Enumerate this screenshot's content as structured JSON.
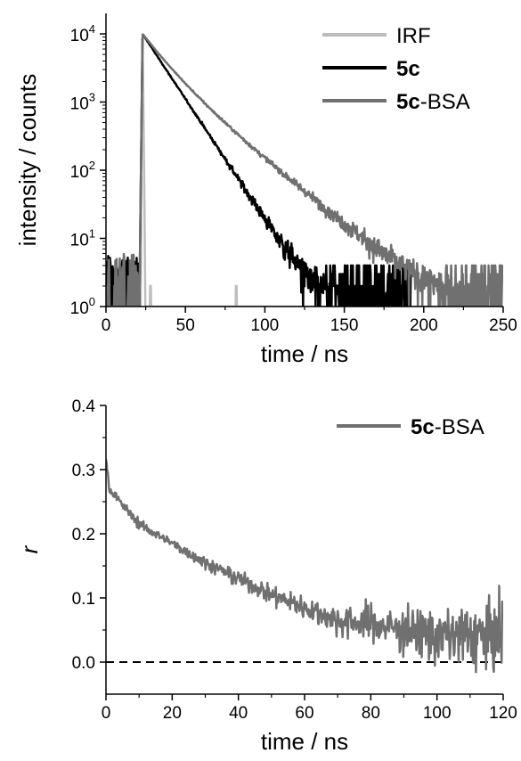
{
  "chart_data": [
    {
      "type": "line",
      "xlabel": "time / ns",
      "ylabel": "intensity / counts",
      "xlim": [
        0,
        250
      ],
      "ylim": [
        1,
        20000
      ],
      "yscale": "log",
      "x_ticks": [
        "0",
        "50",
        "100",
        "150",
        "200",
        "250"
      ],
      "y_ticks": [
        {
          "base": "10",
          "exp": "0",
          "value": 1
        },
        {
          "base": "10",
          "exp": "1",
          "value": 10
        },
        {
          "base": "10",
          "exp": "2",
          "value": 100
        },
        {
          "base": "10",
          "exp": "3",
          "value": 1000
        },
        {
          "base": "10",
          "exp": "4",
          "value": 10000
        }
      ],
      "legend_position": "top-right",
      "series": [
        {
          "name": "IRF",
          "legend": [
            {
              "text": "IRF",
              "bold": false
            }
          ],
          "color": "#bdbdbd",
          "kind": "irf",
          "peak_x": 23,
          "peak_y": 10000,
          "spike_x": [
            28,
            82
          ],
          "spike_y": 2,
          "range": [
            0,
            250
          ]
        },
        {
          "name": "5c",
          "legend": [
            {
              "text": "5c",
              "bold": true
            }
          ],
          "color": "#000000",
          "kind": "decay",
          "rise_x": 21,
          "peak_x": 23,
          "peak_y": 10000,
          "background": 2,
          "components": [
            {
              "amplitude": 10000,
              "lifetime": 12.3
            }
          ],
          "noise_until": 192,
          "range": [
            0,
            192
          ]
        },
        {
          "name": "5c-BSA",
          "legend": [
            {
              "text": "5c",
              "bold": true
            },
            {
              "text": "-BSA",
              "bold": false
            }
          ],
          "color": "#707070",
          "kind": "decay",
          "rise_x": 21,
          "peak_x": 23,
          "peak_y": 10000,
          "background": 2,
          "components": [
            {
              "amplitude": 6000,
              "lifetime": 12
            },
            {
              "amplitude": 4000,
              "lifetime": 23
            }
          ],
          "noise_until": 250,
          "range": [
            0,
            250
          ]
        }
      ]
    },
    {
      "type": "line",
      "xlabel": "time / ns",
      "ylabel": "r",
      "xlim": [
        0,
        120
      ],
      "ylim": [
        -0.05,
        0.4
      ],
      "x_ticks": [
        "0",
        "20",
        "40",
        "60",
        "80",
        "100",
        "120"
      ],
      "y_ticks": [
        "0.0",
        "0.1",
        "0.2",
        "0.3",
        "0.4"
      ],
      "legend_position": "top-right",
      "reference_line": {
        "y": 0,
        "style": "dashed",
        "color": "#000000"
      },
      "series": [
        {
          "name": "5c-BSA",
          "legend": [
            {
              "text": "5c",
              "bold": true
            },
            {
              "text": "-BSA",
              "bold": false
            }
          ],
          "color": "#707070",
          "kind": "anisotropy",
          "points": [
            [
              0,
              0.32
            ],
            [
              1,
              0.27
            ],
            [
              5,
              0.245
            ],
            [
              10,
              0.215
            ],
            [
              20,
              0.185
            ],
            [
              30,
              0.155
            ],
            [
              40,
              0.13
            ],
            [
              50,
              0.105
            ],
            [
              60,
              0.085
            ],
            [
              70,
              0.065
            ],
            [
              80,
              0.06
            ],
            [
              90,
              0.05
            ],
            [
              100,
              0.04
            ],
            [
              110,
              0.04
            ],
            [
              120,
              0.04
            ]
          ],
          "range": [
            0,
            120
          ]
        }
      ]
    }
  ]
}
